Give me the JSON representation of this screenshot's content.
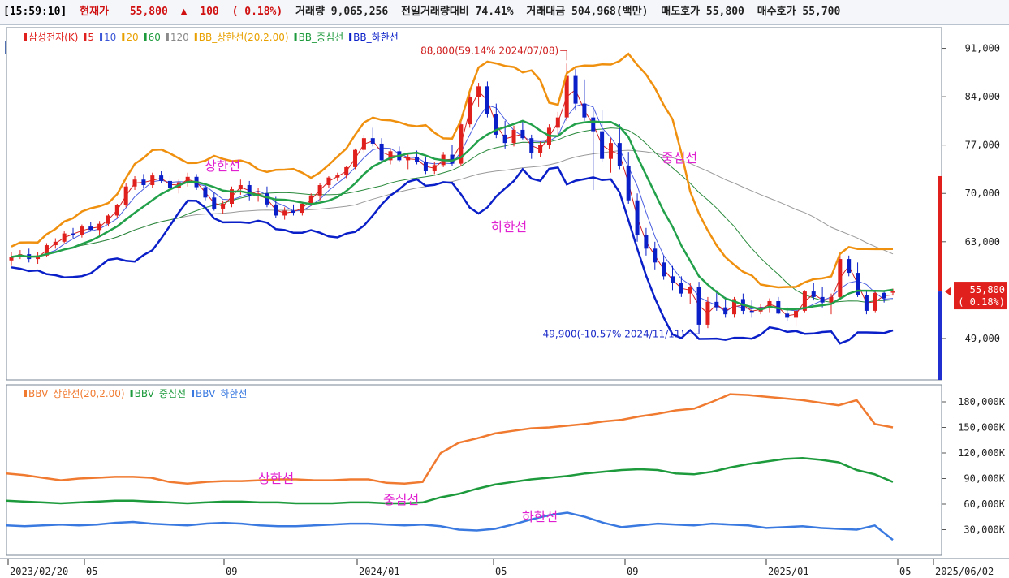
{
  "header": {
    "time": "[15:59:10]",
    "current_label": "현재가",
    "current_price": "55,800",
    "change_arrow": "▲",
    "change": "100",
    "change_pct": "( 0.18%)",
    "volume": "거래량 9,065,256",
    "vol_ratio": "전일거래량대비 74.41%",
    "turnover": "거래대금 504,968(백만)",
    "ask": "매도호가 55,800",
    "bid": "매수호가 55,700"
  },
  "tag_ho": "호",
  "upper_legend": [
    {
      "text": "삼성전자(K)",
      "color": "#e0201c",
      "marker_color": "#e0201c"
    },
    {
      "text": "5",
      "color": "#e0201c",
      "marker_color": "#e0201c"
    },
    {
      "text": "10",
      "color": "#3a56d6",
      "marker_color": "#3a56d6"
    },
    {
      "text": "20",
      "color": "#e8a000",
      "marker_color": "#e8a000"
    },
    {
      "text": "60",
      "color": "#1d9a3c",
      "marker_color": "#1d9a3c"
    },
    {
      "text": "120",
      "color": "#8a8a8a",
      "marker_color": "#8a8a8a"
    },
    {
      "text": "BB_상한선(20,2.00)",
      "color": "#e8a000",
      "marker_color": "#e8a000"
    },
    {
      "text": "BB_중심선",
      "color": "#1d9a3c",
      "marker_color": "#1d9a3c"
    },
    {
      "text": "BB_하한선",
      "color": "#0a1fc8",
      "marker_color": "#0a1fc8"
    }
  ],
  "lower_legend": [
    {
      "text": "BBV_상한선(20,2.00)",
      "color": "#f07a30",
      "marker_color": "#f07a30"
    },
    {
      "text": "BBV_중심선",
      "color": "#1d9a3c",
      "marker_color": "#1d9a3c"
    },
    {
      "text": "BBV_하한선",
      "color": "#3a7ae0",
      "marker_color": "#3a7ae0"
    }
  ],
  "price_annotations": {
    "high": "88,800(59.14% 2024/07/08)",
    "low": "49,900(-10.57% 2024/11/11)",
    "upper_label": "상한선",
    "mid_label": "중심선",
    "lower_label": "하한선"
  },
  "volume_annotations": {
    "upper_label": "상한선",
    "mid_label": "중심선",
    "lower_label": "하한선"
  },
  "current_tag": {
    "price": "55,800",
    "pct": "( 0.18%)"
  },
  "colors": {
    "up": "#e0201c",
    "down": "#0a1fc8",
    "bb_upper": "#f0900f",
    "bb_mid": "#22a04a",
    "bb_lower": "#0a1fc8",
    "ma5": "#d42020",
    "ma10": "#4a5ee0",
    "ma120": "#9a9a9a",
    "ma60": "#2a8a3c",
    "vol_upper": "#f07a30",
    "vol_mid": "#1d9a3c",
    "vol_lower": "#3a7ae0",
    "annotation": "#e020d0"
  },
  "chart_data": [
    {
      "type": "candlestick",
      "title": "삼성전자(K)",
      "y_axis_ticks": [
        "91,000",
        "84,000",
        "77,000",
        "70,000",
        "63,000",
        "49,000"
      ],
      "ylim": [
        43000,
        94000
      ],
      "x_ticks": [
        "2023/02/20",
        "05",
        "09",
        "2024/01",
        "05",
        "09",
        "2025/01",
        "05",
        "2025/06/02"
      ],
      "ohlc": [
        [
          60300,
          61500,
          59500,
          60800
        ],
        [
          60800,
          61800,
          60500,
          61200
        ],
        [
          61200,
          62000,
          60000,
          60500
        ],
        [
          60500,
          61500,
          59800,
          61000
        ],
        [
          61000,
          62800,
          60800,
          62500
        ],
        [
          62500,
          63500,
          62000,
          63000
        ],
        [
          63000,
          64500,
          62800,
          64200
        ],
        [
          64200,
          65000,
          63500,
          64000
        ],
        [
          64000,
          65500,
          63600,
          65200
        ],
        [
          65200,
          65800,
          64500,
          64700
        ],
        [
          64700,
          66000,
          64000,
          65600
        ],
        [
          65600,
          67000,
          65200,
          66800
        ],
        [
          66800,
          68500,
          66500,
          68300
        ],
        [
          68300,
          71500,
          68000,
          71000
        ],
        [
          71000,
          72500,
          70500,
          72000
        ],
        [
          72000,
          72800,
          70800,
          71200
        ],
        [
          71200,
          73000,
          70800,
          72600
        ],
        [
          72600,
          73200,
          71500,
          71800
        ],
        [
          71800,
          72500,
          70500,
          70800
        ],
        [
          70800,
          72000,
          70000,
          71600
        ],
        [
          71600,
          73000,
          71000,
          72400
        ],
        [
          72400,
          72800,
          70500,
          70900
        ],
        [
          70900,
          71500,
          69000,
          69400
        ],
        [
          69400,
          70200,
          67500,
          67800
        ],
        [
          67800,
          69000,
          67000,
          68500
        ],
        [
          68500,
          71000,
          68000,
          70600
        ],
        [
          70600,
          72000,
          69800,
          71200
        ],
        [
          71200,
          71800,
          69000,
          69600
        ],
        [
          69600,
          70800,
          68800,
          70000
        ],
        [
          70000,
          71000,
          68000,
          68400
        ],
        [
          68400,
          69500,
          66500,
          66800
        ],
        [
          66800,
          68000,
          66200,
          67500
        ],
        [
          67500,
          68400,
          66800,
          67200
        ],
        [
          67200,
          68800,
          66800,
          68500
        ],
        [
          68500,
          70000,
          68200,
          69700
        ],
        [
          69700,
          71500,
          69000,
          71200
        ],
        [
          71200,
          72500,
          70800,
          72300
        ],
        [
          72300,
          73000,
          71800,
          72600
        ],
        [
          72600,
          74000,
          72200,
          73800
        ],
        [
          73800,
          76500,
          73500,
          76300
        ],
        [
          76300,
          78500,
          75800,
          78000
        ],
        [
          78000,
          79500,
          76800,
          77200
        ],
        [
          77200,
          78000,
          74500,
          74800
        ],
        [
          74800,
          76500,
          74200,
          76100
        ],
        [
          76100,
          76800,
          74500,
          74800
        ],
        [
          74800,
          75800,
          73500,
          75200
        ],
        [
          75200,
          76200,
          74200,
          74600
        ],
        [
          74600,
          75200,
          72800,
          73200
        ],
        [
          73200,
          74500,
          72800,
          74100
        ],
        [
          74100,
          76000,
          73800,
          75600
        ],
        [
          75600,
          77000,
          74000,
          74300
        ],
        [
          74300,
          80500,
          74000,
          80000
        ],
        [
          80000,
          84500,
          79500,
          84000
        ],
        [
          84000,
          86000,
          82500,
          85500
        ],
        [
          85500,
          86200,
          81000,
          81500
        ],
        [
          81500,
          83000,
          78000,
          78500
        ],
        [
          78500,
          80500,
          76500,
          77300
        ],
        [
          77300,
          79800,
          76800,
          79200
        ],
        [
          79200,
          80400,
          77800,
          78000
        ],
        [
          78000,
          78500,
          75000,
          75800
        ],
        [
          75800,
          77500,
          75200,
          77000
        ],
        [
          77000,
          80000,
          76500,
          79500
        ],
        [
          79500,
          81800,
          78500,
          81000
        ],
        [
          81000,
          88800,
          80500,
          87000
        ],
        [
          87000,
          88000,
          82000,
          83000
        ],
        [
          83000,
          86500,
          80500,
          81000
        ],
        [
          81000,
          82000,
          70500,
          79000
        ],
        [
          79000,
          82000,
          74500,
          75000
        ],
        [
          75000,
          78000,
          73000,
          77300
        ],
        [
          77300,
          80000,
          73500,
          74000
        ],
        [
          74000,
          76000,
          68500,
          69000
        ],
        [
          69000,
          70000,
          63000,
          64000
        ],
        [
          64000,
          65000,
          61000,
          62000
        ],
        [
          62000,
          63000,
          59000,
          60000
        ],
        [
          60000,
          61000,
          57500,
          58000
        ],
        [
          58000,
          59500,
          56000,
          57000
        ],
        [
          57000,
          58000,
          55000,
          55500
        ],
        [
          55500,
          57000,
          54000,
          56500
        ],
        [
          56500,
          57200,
          49900,
          51000
        ],
        [
          51000,
          55000,
          50500,
          54300
        ],
        [
          54300,
          56000,
          53000,
          53500
        ],
        [
          53500,
          55000,
          52000,
          52500
        ],
        [
          52500,
          55000,
          52000,
          54700
        ],
        [
          54700,
          55500,
          52500,
          53000
        ],
        [
          53000,
          54500,
          52000,
          52900
        ],
        [
          52900,
          54000,
          52500,
          53500
        ],
        [
          53500,
          54800,
          52800,
          54400
        ],
        [
          54400,
          55000,
          52500,
          52600
        ],
        [
          52600,
          53500,
          51500,
          52000
        ],
        [
          52000,
          53500,
          50800,
          53000
        ],
        [
          53000,
          56000,
          52800,
          55800
        ],
        [
          55800,
          57000,
          54500,
          55000
        ],
        [
          55000,
          56500,
          53500,
          54200
        ],
        [
          54200,
          55500,
          52500,
          55000
        ],
        [
          55000,
          61500,
          54800,
          60500
        ],
        [
          60500,
          61000,
          58000,
          58500
        ],
        [
          58500,
          60000,
          55000,
          55300
        ],
        [
          55300,
          56000,
          52500,
          53000
        ],
        [
          53000,
          55800,
          52800,
          55600
        ],
        [
          55600,
          56000,
          54200,
          54800
        ],
        [
          55700,
          56200,
          55200,
          55800
        ]
      ]
    },
    {
      "type": "line",
      "title": "",
      "y_axis_ticks": [
        "180,000K",
        "150,000K",
        "120,000K",
        "90,000K",
        "60,000K",
        "30,000K"
      ],
      "ylim": [
        0,
        200000
      ],
      "x_ticks": [
        "2023/02/20",
        "05",
        "09",
        "2024/01",
        "05",
        "09",
        "2025/01",
        "05",
        "2025/06/02"
      ],
      "series": [
        {
          "name": "BBV_상한선(20,2.00)",
          "values": [
            96000,
            94000,
            91000,
            88000,
            90000,
            91000,
            92000,
            92000,
            91000,
            86000,
            84000,
            86000,
            87000,
            87000,
            88000,
            89000,
            89000,
            88000,
            88000,
            89000,
            89000,
            85000,
            84000,
            86000,
            120000,
            132000,
            137000,
            143000,
            146000,
            149000,
            150000,
            152000,
            154000,
            157000,
            159000,
            163000,
            166000,
            170000,
            172000,
            180000,
            189000,
            188000,
            186000,
            184000,
            182000,
            179000,
            176000,
            182000,
            154000,
            150000
          ]
        },
        {
          "name": "BBV_중심선",
          "values": [
            64000,
            63000,
            62000,
            61000,
            62000,
            63000,
            64000,
            64000,
            63000,
            62000,
            61000,
            62000,
            63000,
            63000,
            62000,
            62000,
            61000,
            61000,
            61000,
            62000,
            62000,
            61000,
            61000,
            62000,
            68000,
            72000,
            78000,
            83000,
            86000,
            89000,
            91000,
            93000,
            96000,
            98000,
            100000,
            101000,
            100000,
            96000,
            95000,
            98000,
            103000,
            107000,
            110000,
            113000,
            114000,
            112000,
            109000,
            100000,
            95000,
            86000
          ]
        },
        {
          "name": "BBV_하한선",
          "values": [
            35000,
            34000,
            35000,
            36000,
            35000,
            36000,
            38000,
            39000,
            37000,
            36000,
            35000,
            37000,
            38000,
            37000,
            35000,
            34000,
            34000,
            35000,
            36000,
            37000,
            37000,
            36000,
            35000,
            36000,
            34000,
            30000,
            29000,
            31000,
            36000,
            42000,
            47000,
            50000,
            45000,
            38000,
            33000,
            35000,
            37000,
            36000,
            35000,
            37000,
            36000,
            35000,
            32000,
            33000,
            34000,
            32000,
            31000,
            30000,
            35000,
            18000
          ]
        }
      ]
    }
  ]
}
